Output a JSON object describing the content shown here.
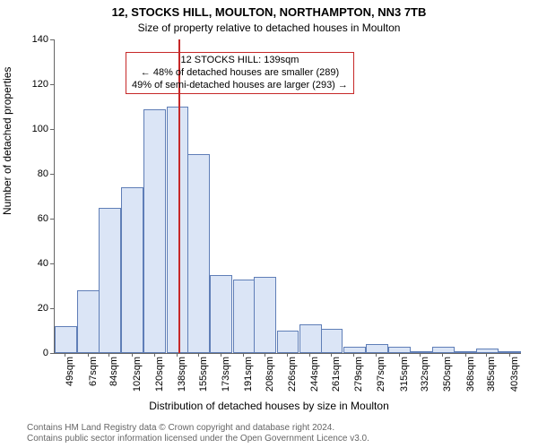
{
  "title": "12, STOCKS HILL, MOULTON, NORTHAMPTON, NN3 7TB",
  "subtitle": "Size of property relative to detached houses in Moulton",
  "y_axis_label": "Number of detached properties",
  "x_axis_label": "Distribution of detached houses by size in Moulton",
  "annotation": {
    "lines": [
      "12 STOCKS HILL: 139sqm",
      "← 48% of detached houses are smaller (289)",
      "49% of semi-detached houses are larger (293) →"
    ],
    "border_color": "#c62828",
    "border_width": 1,
    "fontsize": 11
  },
  "copyright": [
    "Contains HM Land Registry data © Crown copyright and database right 2024.",
    "Contains public sector information licensed under the Open Government Licence v3.0."
  ],
  "copyright_fontsize": 10,
  "title_fontsize": 13,
  "subtitle_fontsize": 12,
  "axis_label_fontsize": 12,
  "tick_fontsize": 11,
  "chart": {
    "type": "histogram",
    "background_color": "#ffffff",
    "bar_fill": "#dbe5f6",
    "bar_border": "#5f7eb7",
    "bar_border_width": 1,
    "marker_x": 139,
    "marker_color": "#c62828",
    "ylim": [
      0,
      140
    ],
    "ytick_step": 20,
    "x_categories": [
      "49sqm",
      "67sqm",
      "84sqm",
      "102sqm",
      "120sqm",
      "138sqm",
      "155sqm",
      "173sqm",
      "191sqm",
      "208sqm",
      "226sqm",
      "244sqm",
      "261sqm",
      "279sqm",
      "297sqm",
      "315sqm",
      "332sqm",
      "350sqm",
      "368sqm",
      "385sqm",
      "403sqm"
    ],
    "x_numeric": [
      49,
      67,
      84,
      102,
      120,
      138,
      155,
      173,
      191,
      208,
      226,
      244,
      261,
      279,
      297,
      315,
      332,
      350,
      368,
      385,
      403
    ],
    "bin_width_sqm": 17.7,
    "values": [
      12,
      28,
      65,
      74,
      109,
      110,
      89,
      35,
      33,
      34,
      10,
      13,
      11,
      3,
      4,
      3,
      1,
      3,
      0,
      2,
      1
    ]
  }
}
